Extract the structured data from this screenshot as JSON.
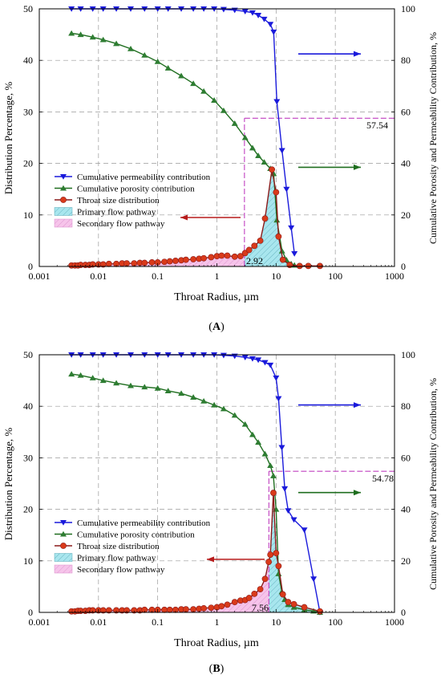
{
  "panels": [
    {
      "caption": "(A)",
      "caption_letter": "A",
      "axes": {
        "x_label": "Throat Radius, µm",
        "y_left_label": "Distribution Percentage, %",
        "y_right_label": "Cumulative Porosity and Permeability Contribution, %",
        "x_ticks": [
          "0.001",
          "0.01",
          "0.1",
          "1",
          "10",
          "100",
          "1000"
        ],
        "y_left_ticks": [
          "0",
          "10",
          "20",
          "30",
          "40",
          "50"
        ],
        "y_right_ticks": [
          "0",
          "20",
          "40",
          "60",
          "80",
          "100"
        ]
      },
      "annotations": {
        "threshold_label": "2.92",
        "cumulative_label": "57.54"
      },
      "legend": [
        "Cumulative permeability contribution",
        "Cumulative porosity contribution",
        "Throat size distribution",
        "Primary flow pathway",
        "Secondary flow pathway"
      ]
    },
    {
      "caption": "(B)",
      "caption_letter": "B",
      "axes": {
        "x_label": "Throat Radius, µm",
        "y_left_label": "Distribution Percentage, %",
        "y_right_label": "Cumulative Porosity and Permeability Contribution, %",
        "x_ticks": [
          "0.001",
          "0.01",
          "0.1",
          "1",
          "10",
          "100",
          "1000"
        ],
        "y_left_ticks": [
          "0",
          "10",
          "20",
          "30",
          "40",
          "50"
        ],
        "y_right_ticks": [
          "0",
          "20",
          "40",
          "60",
          "80",
          "100"
        ]
      },
      "annotations": {
        "threshold_label": "7.56",
        "cumulative_label": "54.78"
      },
      "legend": [
        "Cumulative permeability contribution",
        "Cumulative porosity contribution",
        "Throat size distribution",
        "Primary flow pathway",
        "Secondary flow pathway"
      ]
    }
  ],
  "colors": {
    "permeability": "#1a1adb",
    "porosity": "#1f6e1f",
    "porosity_marker": "#2e7d32",
    "throat_line": "#8b1a1a",
    "throat_marker": "#d93a1a",
    "primary_fill": "#a8e6ee",
    "secondary_fill": "#f6c4ea",
    "guide_line": "#c040c0"
  },
  "chart_data": [
    {
      "type": "line",
      "x_scale": "log",
      "xlim": [
        0.001,
        1000
      ],
      "ylim_left": [
        0,
        50
      ],
      "ylim_right": [
        0,
        100
      ],
      "grid": true,
      "legend_position": "left-middle",
      "threshold": 2.92,
      "threshold_cumulative": 57.54,
      "series": [
        {
          "name": "Cumulative permeability contribution",
          "axis": "right",
          "marker": "triangle-down",
          "x": [
            0.0035,
            0.005,
            0.008,
            0.012,
            0.02,
            0.035,
            0.06,
            0.1,
            0.15,
            0.25,
            0.4,
            0.6,
            0.9,
            1.3,
            2,
            3,
            4,
            5,
            6.3,
            8,
            9.1,
            10.3,
            12.6,
            15,
            18,
            20.4
          ],
          "y": [
            100,
            100,
            100,
            100,
            100,
            100,
            100,
            100,
            100,
            100,
            100,
            100,
            100,
            99.8,
            99.5,
            99,
            98.5,
            97.5,
            96,
            94,
            91,
            64,
            45,
            30,
            15,
            5
          ]
        },
        {
          "name": "Cumulative porosity contribution",
          "axis": "right",
          "marker": "triangle-up",
          "x": [
            0.0035,
            0.005,
            0.008,
            0.012,
            0.02,
            0.035,
            0.06,
            0.1,
            0.15,
            0.25,
            0.4,
            0.6,
            0.9,
            1.3,
            2,
            3,
            4,
            5,
            6.3,
            8,
            9.1,
            10.3,
            12.6,
            15,
            18,
            20.4
          ],
          "y": [
            90.5,
            90,
            89,
            88,
            86.5,
            84.5,
            82,
            79.5,
            77,
            74,
            71,
            68,
            64.5,
            60.5,
            55.5,
            50,
            46,
            43,
            40.5,
            38,
            36,
            18,
            6,
            2.5,
            1,
            0.5
          ]
        },
        {
          "name": "Throat size distribution",
          "axis": "left",
          "marker": "circle",
          "x": [
            0.0035,
            0.004,
            0.0045,
            0.005,
            0.006,
            0.007,
            0.008,
            0.01,
            0.012,
            0.015,
            0.02,
            0.025,
            0.03,
            0.04,
            0.05,
            0.06,
            0.08,
            0.1,
            0.13,
            0.16,
            0.2,
            0.25,
            0.3,
            0.4,
            0.5,
            0.6,
            0.8,
            1,
            1.2,
            1.5,
            2,
            2.5,
            3,
            3.5,
            4.3,
            5.4,
            6.5,
            8.5,
            10,
            11,
            13,
            17,
            25,
            35,
            55
          ],
          "y": [
            0.2,
            0.2,
            0.2,
            0.3,
            0.3,
            0.3,
            0.4,
            0.4,
            0.4,
            0.5,
            0.5,
            0.6,
            0.6,
            0.6,
            0.7,
            0.7,
            0.8,
            0.8,
            0.9,
            1.0,
            1.1,
            1.2,
            1.3,
            1.4,
            1.5,
            1.6,
            1.8,
            2.0,
            2.1,
            2.1,
            1.9,
            2.0,
            2.6,
            3.2,
            4.0,
            5.0,
            9.3,
            18.8,
            14.4,
            5.8,
            1.3,
            0.3,
            0.1,
            0.1,
            0.1
          ]
        }
      ]
    },
    {
      "type": "line",
      "x_scale": "log",
      "xlim": [
        0.001,
        1000
      ],
      "ylim_left": [
        0,
        50
      ],
      "ylim_right": [
        0,
        100
      ],
      "grid": true,
      "legend_position": "left-lower",
      "threshold": 7.56,
      "threshold_cumulative": 54.78,
      "series": [
        {
          "name": "Cumulative permeability contribution",
          "axis": "right",
          "marker": "triangle-down",
          "x": [
            0.0035,
            0.005,
            0.008,
            0.012,
            0.02,
            0.035,
            0.06,
            0.1,
            0.15,
            0.25,
            0.4,
            0.6,
            0.9,
            1.3,
            2,
            3,
            4,
            5,
            6.5,
            8,
            10,
            11,
            12.5,
            14,
            16,
            20,
            30,
            43,
            55
          ],
          "y": [
            100,
            100,
            100,
            100,
            100,
            100,
            100,
            100,
            100,
            100,
            100,
            100,
            100,
            99.8,
            99.5,
            99,
            98.5,
            98,
            97,
            96,
            91,
            83,
            64,
            48,
            39.5,
            36,
            32,
            13,
            0
          ]
        },
        {
          "name": "Cumulative porosity contribution",
          "axis": "right",
          "marker": "triangle-up",
          "x": [
            0.0035,
            0.005,
            0.008,
            0.012,
            0.02,
            0.035,
            0.06,
            0.1,
            0.15,
            0.25,
            0.4,
            0.6,
            0.9,
            1.3,
            2,
            3,
            4,
            5,
            6.5,
            8,
            9,
            10,
            11,
            12.5,
            14,
            16,
            20,
            30,
            43,
            55
          ],
          "y": [
            92.5,
            92,
            91,
            90,
            89,
            88,
            87.5,
            87,
            86,
            85,
            83.5,
            82,
            80.5,
            79,
            76.5,
            73,
            69,
            66,
            61.5,
            57,
            53,
            40,
            15,
            8,
            5,
            3,
            2,
            1,
            0.5,
            0
          ]
        },
        {
          "name": "Throat size distribution",
          "axis": "left",
          "marker": "circle",
          "x": [
            0.0035,
            0.004,
            0.0045,
            0.005,
            0.006,
            0.007,
            0.008,
            0.01,
            0.012,
            0.015,
            0.02,
            0.025,
            0.03,
            0.04,
            0.05,
            0.06,
            0.08,
            0.1,
            0.13,
            0.16,
            0.2,
            0.25,
            0.3,
            0.4,
            0.5,
            0.6,
            0.8,
            1,
            1.2,
            1.5,
            2,
            2.5,
            3,
            3.5,
            4.3,
            5.4,
            6.5,
            7.5,
            8,
            9,
            10,
            11,
            13,
            16,
            20,
            30,
            55
          ],
          "y": [
            0.2,
            0.2,
            0.3,
            0.3,
            0.3,
            0.4,
            0.4,
            0.4,
            0.4,
            0.4,
            0.4,
            0.4,
            0.4,
            0.4,
            0.4,
            0.5,
            0.5,
            0.5,
            0.5,
            0.5,
            0.5,
            0.6,
            0.6,
            0.6,
            0.7,
            0.8,
            0.9,
            1.0,
            1.2,
            1.5,
            2.0,
            2.3,
            2.4,
            2.8,
            3.6,
            4.5,
            6.5,
            9.8,
            11.2,
            23.2,
            11.5,
            9.0,
            3.5,
            2.0,
            1.6,
            1.0,
            0.2
          ]
        }
      ]
    }
  ]
}
